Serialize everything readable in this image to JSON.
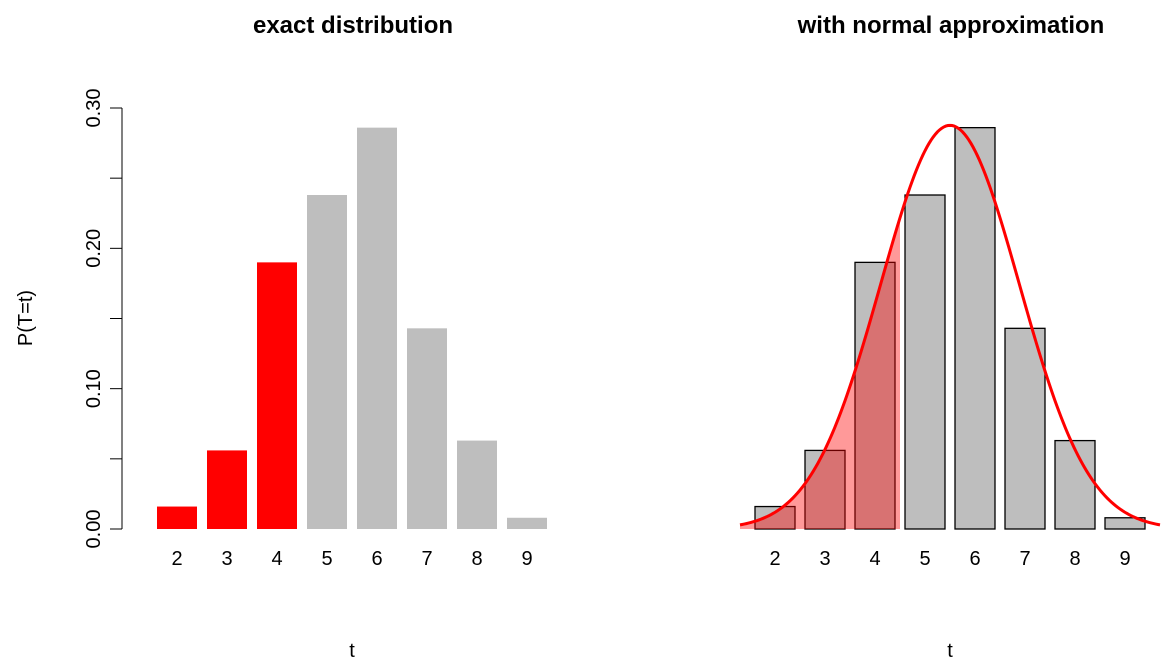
{
  "chart_data": [
    {
      "type": "bar",
      "title": "exact distribution",
      "xlabel": "t",
      "ylabel": "P(T=t)",
      "ylim": [
        0,
        0.3
      ],
      "yticks": [
        "0.00",
        "0.10",
        "0.20",
        "0.30"
      ],
      "categories": [
        "2",
        "3",
        "4",
        "5",
        "6",
        "7",
        "8",
        "9"
      ],
      "values": [
        0.016,
        0.056,
        0.19,
        0.238,
        0.286,
        0.143,
        0.063,
        0.008
      ],
      "highlighted": [
        "2",
        "3",
        "4"
      ],
      "colors": {
        "highlight": "#ff0000",
        "bar": "#bebebe"
      }
    },
    {
      "type": "bar",
      "title": "with normal approximation",
      "xlabel": "t",
      "ylim": [
        0,
        0.3
      ],
      "categories": [
        "2",
        "3",
        "4",
        "5",
        "6",
        "7",
        "8",
        "9"
      ],
      "values": [
        0.016,
        0.056,
        0.19,
        0.238,
        0.286,
        0.143,
        0.063,
        0.008
      ],
      "normal_curve": {
        "mean": 5.5,
        "sd": 1.387
      },
      "shaded_up_to": 4.5,
      "colors": {
        "bar": "#bebebe",
        "bar_border": "#000000",
        "curve": "#ff0000",
        "shade": "rgba(255,0,0,0.4)"
      }
    }
  ]
}
